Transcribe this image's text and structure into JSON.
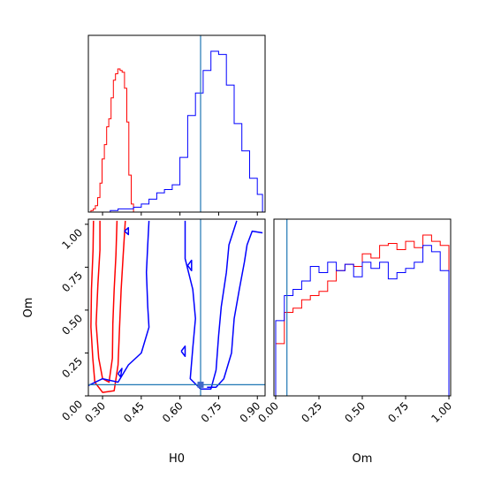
{
  "chart_data": {
    "type": "corner",
    "parameters": [
      "H0",
      "Om"
    ],
    "truth": {
      "H0": 0.68,
      "Om": 0.065
    },
    "colors": {
      "red_run": "#ff0000",
      "blue_run": "#0000ff",
      "truth": "#1f77b4"
    },
    "panels": [
      {
        "id": "H0-marginal",
        "type": "histogram",
        "xlim": [
          0.245,
          0.93
        ],
        "xticks": [
          0.3,
          0.45,
          0.6,
          0.75,
          0.9
        ],
        "series": [
          {
            "color": "red",
            "bin_edges": [
              0.255,
              0.264,
              0.272,
              0.281,
              0.29,
              0.298,
              0.307,
              0.316,
              0.324,
              0.333,
              0.342,
              0.35,
              0.359,
              0.368,
              0.376,
              0.385,
              0.394,
              0.402,
              0.411,
              0.42
            ],
            "counts": [
              1,
              2,
              4,
              9,
              18,
              33,
              42,
              53,
              58,
              71,
              82,
              86,
              89,
              88,
              87,
              77,
              56,
              23,
              5
            ]
          },
          {
            "color": "blue",
            "bin_edges": [
              0.33,
              0.36,
              0.39,
              0.42,
              0.45,
              0.48,
              0.51,
              0.54,
              0.57,
              0.6,
              0.63,
              0.66,
              0.69,
              0.72,
              0.75,
              0.78,
              0.81,
              0.84,
              0.87,
              0.9,
              0.92
            ],
            "counts": [
              1,
              2,
              2,
              3,
              5,
              8,
              12,
              14,
              17,
              34,
              60,
              74,
              88,
              100,
              98,
              79,
              55,
              38,
              21,
              11
            ]
          }
        ]
      },
      {
        "id": "Om-marginal",
        "type": "histogram",
        "xlim": [
          -0.01,
          1.01
        ],
        "xticks": [
          0.0,
          0.25,
          0.5,
          0.75,
          1.0
        ],
        "xticklabels": [
          "0.00",
          "0.25",
          "0.50",
          "0.75",
          "1.00"
        ],
        "series": [
          {
            "color": "red",
            "bin_edges": [
              0.0,
              0.05,
              0.1,
              0.15,
              0.2,
              0.25,
              0.3,
              0.35,
              0.4,
              0.45,
              0.5,
              0.55,
              0.6,
              0.65,
              0.7,
              0.75,
              0.8,
              0.85,
              0.9,
              0.95,
              1.0
            ],
            "counts": [
              25,
              40,
              42,
              46,
              48,
              50,
              55,
              60,
              63,
              62,
              68,
              66,
              72,
              73,
              70,
              74,
              71,
              77,
              74,
              72
            ]
          },
          {
            "color": "blue",
            "bin_edges": [
              0.0,
              0.05,
              0.1,
              0.15,
              0.2,
              0.25,
              0.3,
              0.35,
              0.4,
              0.45,
              0.5,
              0.55,
              0.6,
              0.65,
              0.7,
              0.75,
              0.8,
              0.85,
              0.9,
              0.95,
              1.0
            ],
            "counts": [
              36,
              48,
              51,
              55,
              62,
              59,
              64,
              60,
              63,
              57,
              64,
              61,
              64,
              56,
              59,
              61,
              64,
              72,
              69,
              60
            ]
          }
        ]
      },
      {
        "id": "H0-Om-contours",
        "type": "contour",
        "xlabel": "H0",
        "ylabel": "Om",
        "xlim": [
          0.245,
          0.93
        ],
        "ylim": [
          0.0,
          1.03
        ],
        "xticks": [
          0.3,
          0.45,
          0.6,
          0.75,
          0.9
        ],
        "yticks": [
          0.0,
          0.25,
          0.5,
          0.75,
          1.0
        ],
        "yticklabels": [
          "0.00",
          "0.25",
          "0.50",
          "0.75",
          "1.00"
        ],
        "contours": [
          {
            "color": "red",
            "points": [
              [
                0.265,
                1.02
              ],
              [
                0.263,
                0.85
              ],
              [
                0.257,
                0.62
              ],
              [
                0.255,
                0.4
              ],
              [
                0.262,
                0.22
              ],
              [
                0.27,
                0.08
              ],
              [
                0.3,
                0.02
              ],
              [
                0.345,
                0.03
              ],
              [
                0.36,
                0.18
              ],
              [
                0.366,
                0.4
              ],
              [
                0.372,
                0.62
              ],
              [
                0.38,
                0.82
              ],
              [
                0.388,
                1.02
              ]
            ]
          },
          {
            "color": "red",
            "points": [
              [
                0.29,
                1.02
              ],
              [
                0.29,
                0.85
              ],
              [
                0.282,
                0.65
              ],
              [
                0.275,
                0.42
              ],
              [
                0.285,
                0.22
              ],
              [
                0.3,
                0.1
              ],
              [
                0.325,
                0.08
              ],
              [
                0.338,
                0.22
              ],
              [
                0.34,
                0.42
              ],
              [
                0.345,
                0.62
              ],
              [
                0.352,
                0.82
              ],
              [
                0.356,
                1.02
              ]
            ]
          },
          {
            "color": "blue",
            "points": [
              [
                0.245,
                0.06
              ],
              [
                0.3,
                0.1
              ],
              [
                0.36,
                0.08
              ],
              [
                0.4,
                0.18
              ],
              [
                0.45,
                0.25
              ],
              [
                0.48,
                0.4
              ],
              [
                0.475,
                0.52
              ],
              [
                0.47,
                0.72
              ],
              [
                0.475,
                0.88
              ],
              [
                0.48,
                1.02
              ]
            ]
          },
          {
            "color": "blue",
            "points": [
              [
                0.62,
                1.02
              ],
              [
                0.62,
                0.8
              ],
              [
                0.65,
                0.62
              ],
              [
                0.66,
                0.45
              ],
              [
                0.65,
                0.28
              ],
              [
                0.64,
                0.1
              ],
              [
                0.68,
                0.04
              ],
              [
                0.72,
                0.04
              ],
              [
                0.74,
                0.15
              ],
              [
                0.75,
                0.35
              ],
              [
                0.76,
                0.52
              ],
              [
                0.78,
                0.72
              ],
              [
                0.79,
                0.88
              ],
              [
                0.82,
                1.02
              ]
            ]
          },
          {
            "color": "blue",
            "points": [
              [
                0.705,
                0.05
              ],
              [
                0.74,
                0.05
              ],
              [
                0.77,
                0.1
              ],
              [
                0.8,
                0.25
              ],
              [
                0.81,
                0.45
              ],
              [
                0.83,
                0.62
              ],
              [
                0.85,
                0.78
              ],
              [
                0.86,
                0.88
              ],
              [
                0.88,
                0.96
              ],
              [
                0.92,
                0.95
              ]
            ]
          },
          {
            "color": "blue",
            "points": [
              [
                0.385,
                0.96
              ],
              [
                0.4,
                0.98
              ],
              [
                0.4,
                0.94
              ],
              [
                0.385,
                0.96
              ]
            ]
          },
          {
            "color": "blue",
            "points": [
              [
                0.36,
                0.13
              ],
              [
                0.375,
                0.16
              ],
              [
                0.37,
                0.11
              ],
              [
                0.36,
                0.13
              ]
            ]
          },
          {
            "color": "blue",
            "points": [
              [
                0.63,
                0.76
              ],
              [
                0.645,
                0.79
              ],
              [
                0.645,
                0.73
              ],
              [
                0.63,
                0.76
              ]
            ]
          },
          {
            "color": "blue",
            "points": [
              [
                0.605,
                0.26
              ],
              [
                0.62,
                0.29
              ],
              [
                0.62,
                0.23
              ],
              [
                0.605,
                0.26
              ]
            ]
          }
        ]
      }
    ]
  }
}
